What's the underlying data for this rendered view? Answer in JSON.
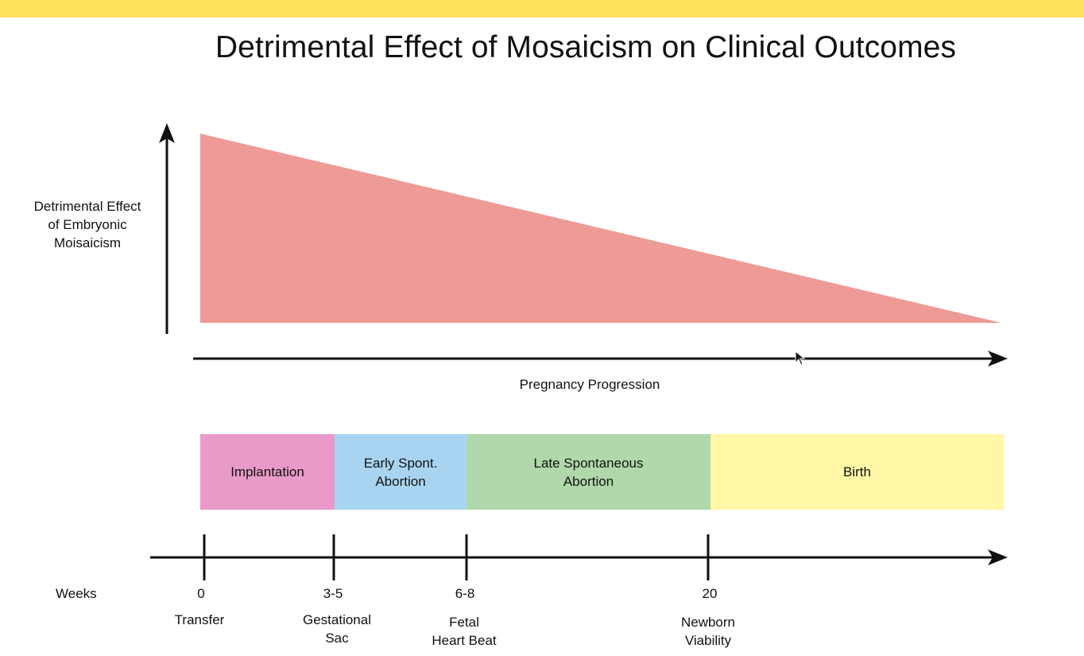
{
  "title": "Detrimental Effect of Mosaicism on Clinical Outcomes",
  "y_axis_label": "Detrimental Effect\nof Embryonic\nMoisaicism",
  "x_axis_label": "Pregnancy Progression",
  "colors": {
    "top_bar": "#fde25e",
    "triangle": "#ee9b98",
    "implantation": "#e99ac8",
    "early_abortion": "#a9d4f1",
    "late_abortion": "#b0d8aa",
    "birth": "#fff7a6",
    "axis": "#111111"
  },
  "phases": [
    {
      "label": "Implantation",
      "color_key": "implantation"
    },
    {
      "label": "Early Spont.\nAbortion",
      "color_key": "early_abortion"
    },
    {
      "label": "Late Spontaneous\nAbortion",
      "color_key": "late_abortion"
    },
    {
      "label": "Birth",
      "color_key": "birth"
    }
  ],
  "timeline": {
    "label": "Weeks",
    "ticks": [
      {
        "value": "0",
        "event": "Transfer"
      },
      {
        "value": "3-5",
        "event": "Gestational\nSac"
      },
      {
        "value": "6-8",
        "event": "Fetal\nHeart Beat"
      },
      {
        "value": "20",
        "event": "Newborn\nViability"
      }
    ]
  }
}
